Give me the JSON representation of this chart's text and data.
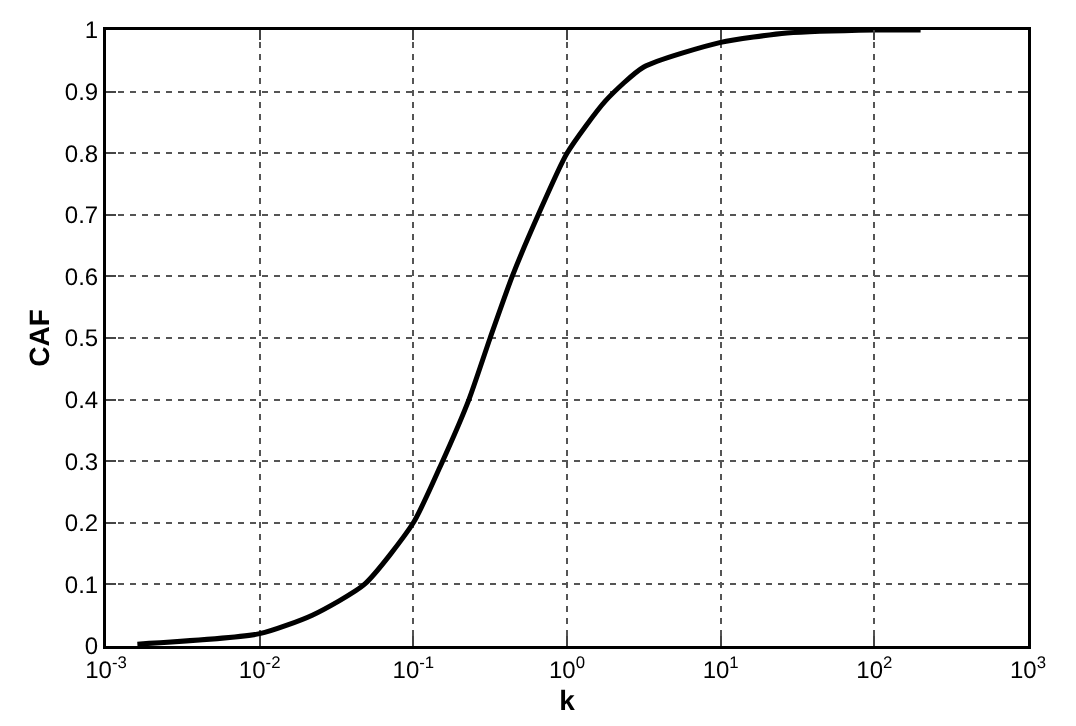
{
  "chart_data": {
    "type": "line",
    "xlabel": "k",
    "ylabel": "CAF",
    "log": "x",
    "grid": true,
    "marker": "none",
    "line_style": "solid",
    "xlim": [
      0.001,
      1000
    ],
    "ylim": [
      0,
      1
    ],
    "xticks": [
      {
        "value": 0.001,
        "label": "10$^{-3}$"
      },
      {
        "value": 0.01,
        "label": "10$^{-2}$"
      },
      {
        "value": 0.1,
        "label": "10$^{-1}$"
      },
      {
        "value": 1,
        "label": "10$^{0}$"
      },
      {
        "value": 10,
        "label": "10$^{1}$"
      },
      {
        "value": 100,
        "label": "10$^{2}$"
      },
      {
        "value": 1000,
        "label": "10$^{3}$"
      }
    ],
    "yticks": [
      0,
      0.1,
      0.2,
      0.3,
      0.4,
      0.5,
      0.6,
      0.7,
      0.8,
      0.9,
      1
    ],
    "x": [
      0.0016,
      0.01,
      0.022,
      0.048,
      0.1,
      0.155,
      0.23,
      0.316,
      0.44,
      0.65,
      1,
      1.78,
      3.16,
      10,
      27,
      100,
      200
    ],
    "series": [
      {
        "color": "#000000",
        "values": [
          0.003,
          0.02,
          0.05,
          0.1,
          0.2,
          0.3,
          0.4,
          0.5,
          0.6,
          0.7,
          0.8,
          0.885,
          0.94,
          0.98,
          0.995,
          1,
          1
        ]
      }
    ]
  }
}
